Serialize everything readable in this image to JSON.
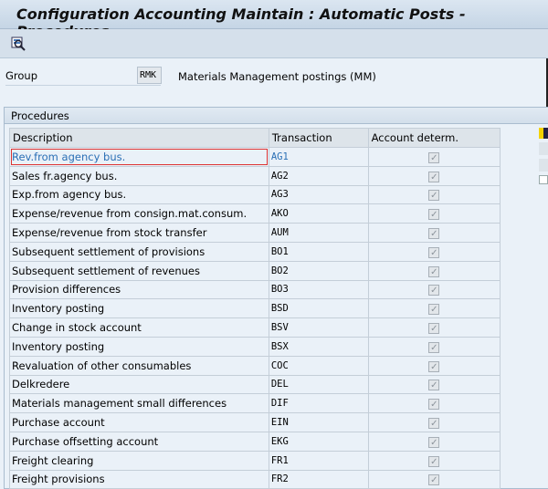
{
  "title": "Configuration Accounting Maintain : Automatic Posts - Procedures",
  "toolbar": {
    "icons": [
      "detail-view-icon"
    ]
  },
  "group": {
    "label": "Group",
    "value": "RMK",
    "description": "Materials Management postings (MM)"
  },
  "procedures": {
    "title": "Procedures",
    "columns": [
      "Description",
      "Transaction",
      "Account determ."
    ],
    "rows": [
      {
        "description": "Rev.from agency bus.",
        "transaction": "AG1",
        "checked": true
      },
      {
        "description": "Sales fr.agency bus.",
        "transaction": "AG2",
        "checked": true
      },
      {
        "description": "Exp.from agency bus.",
        "transaction": "AG3",
        "checked": true
      },
      {
        "description": "Expense/revenue from consign.mat.consum.",
        "transaction": "AKO",
        "checked": true
      },
      {
        "description": "Expense/revenue from stock transfer",
        "transaction": "AUM",
        "checked": true
      },
      {
        "description": "Subsequent settlement of provisions",
        "transaction": "BO1",
        "checked": true
      },
      {
        "description": "Subsequent settlement of revenues",
        "transaction": "BO2",
        "checked": true
      },
      {
        "description": "Provision differences",
        "transaction": "BO3",
        "checked": true
      },
      {
        "description": "Inventory posting",
        "transaction": "BSD",
        "checked": true
      },
      {
        "description": "Change in stock account",
        "transaction": "BSV",
        "checked": true
      },
      {
        "description": "Inventory posting",
        "transaction": "BSX",
        "checked": true
      },
      {
        "description": "Revaluation of other consumables",
        "transaction": "COC",
        "checked": true
      },
      {
        "description": "Delkredere",
        "transaction": "DEL",
        "checked": true
      },
      {
        "description": "Materials management small differences",
        "transaction": "DIF",
        "checked": true
      },
      {
        "description": "Purchase account",
        "transaction": "EIN",
        "checked": true
      },
      {
        "description": "Purchase offsetting account",
        "transaction": "EKG",
        "checked": true
      },
      {
        "description": "Freight clearing",
        "transaction": "FR1",
        "checked": true
      },
      {
        "description": "Freight provisions",
        "transaction": "FR2",
        "checked": true
      }
    ]
  }
}
